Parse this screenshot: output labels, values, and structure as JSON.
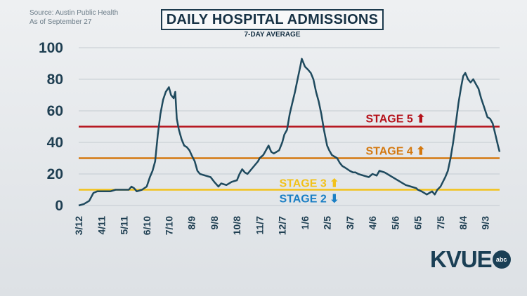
{
  "source": {
    "line1": "Source: Austin Public Health",
    "line2": "As of September 27"
  },
  "logo": {
    "text": "KVUE",
    "badge": "abc"
  },
  "chart_data": {
    "type": "line",
    "title": "DAILY HOSPITAL ADMISSIONS",
    "subtitle": "7-DAY AVERAGE",
    "xlabel": "",
    "ylabel": "",
    "ylim": [
      0,
      100
    ],
    "yticks": [
      0,
      20,
      40,
      60,
      80,
      100
    ],
    "grid": true,
    "xticks": [
      {
        "label": "3/12",
        "week": 0
      },
      {
        "label": "4/11",
        "week": 4.3
      },
      {
        "label": "5/11",
        "week": 8.6
      },
      {
        "label": "6/10",
        "week": 12.9
      },
      {
        "label": "7/10",
        "week": 17.1
      },
      {
        "label": "8/9",
        "week": 21.4
      },
      {
        "label": "9/8",
        "week": 25.7
      },
      {
        "label": "10/8",
        "week": 30.0
      },
      {
        "label": "11/7",
        "week": 34.3
      },
      {
        "label": "12/7",
        "week": 38.6
      },
      {
        "label": "1/6",
        "week": 42.9
      },
      {
        "label": "2/5",
        "week": 47.1
      },
      {
        "label": "3/7",
        "week": 51.4
      },
      {
        "label": "4/6",
        "week": 55.7
      },
      {
        "label": "5/6",
        "week": 60.0
      },
      {
        "label": "6/5",
        "week": 64.3
      },
      {
        "label": "7/5",
        "week": 68.6
      },
      {
        "label": "8/4",
        "week": 72.9
      },
      {
        "label": "9/3",
        "week": 77.1
      }
    ],
    "thresholds": [
      {
        "name": "STAGE 5",
        "value": 50,
        "color": "#b5121b",
        "arrow": "up",
        "arrow_glyph": "⬆"
      },
      {
        "name": "STAGE 4",
        "value": 30,
        "color": "#d4780f",
        "arrow": "up",
        "arrow_glyph": "⬆"
      },
      {
        "name": "STAGE 3",
        "value": 10,
        "color": "#f2c21a",
        "arrow": "up",
        "arrow_glyph": "⬆"
      },
      {
        "name": "STAGE 2",
        "value": 10,
        "color": "#1a7fc4",
        "arrow": "down",
        "arrow_glyph": "⬇"
      }
    ],
    "series": [
      {
        "color": "#1f4a5e",
        "points": [
          [
            0,
            0
          ],
          [
            1,
            1
          ],
          [
            2,
            3
          ],
          [
            2.8,
            8
          ],
          [
            3.5,
            9
          ],
          [
            4.3,
            9
          ],
          [
            5,
            9
          ],
          [
            6,
            9
          ],
          [
            7,
            10
          ],
          [
            8,
            10
          ],
          [
            8.6,
            10
          ],
          [
            9.5,
            10
          ],
          [
            10,
            12
          ],
          [
            10.5,
            11
          ],
          [
            11,
            9
          ],
          [
            12,
            10
          ],
          [
            12.9,
            12
          ],
          [
            13.5,
            18
          ],
          [
            14,
            22
          ],
          [
            14.5,
            28
          ],
          [
            15,
            45
          ],
          [
            15.5,
            58
          ],
          [
            16,
            67
          ],
          [
            16.5,
            72
          ],
          [
            17.1,
            75
          ],
          [
            17.5,
            70
          ],
          [
            18,
            68
          ],
          [
            18.3,
            72
          ],
          [
            18.6,
            55
          ],
          [
            19,
            48
          ],
          [
            19.5,
            42
          ],
          [
            20,
            38
          ],
          [
            20.5,
            37
          ],
          [
            21,
            35
          ],
          [
            21.4,
            32
          ],
          [
            22,
            28
          ],
          [
            22.5,
            22
          ],
          [
            23,
            20
          ],
          [
            24,
            19
          ],
          [
            25,
            18
          ],
          [
            25.7,
            15
          ],
          [
            26.5,
            12
          ],
          [
            27,
            14
          ],
          [
            28,
            13
          ],
          [
            29,
            15
          ],
          [
            30,
            16
          ],
          [
            30.5,
            20
          ],
          [
            31,
            23
          ],
          [
            31.5,
            21
          ],
          [
            32,
            20
          ],
          [
            33,
            24
          ],
          [
            34,
            28
          ],
          [
            34.3,
            30
          ],
          [
            35,
            32
          ],
          [
            35.5,
            35
          ],
          [
            36,
            38
          ],
          [
            36.5,
            34
          ],
          [
            37,
            33
          ],
          [
            38,
            35
          ],
          [
            38.6,
            40
          ],
          [
            39,
            45
          ],
          [
            39.5,
            48
          ],
          [
            40,
            58
          ],
          [
            40.5,
            65
          ],
          [
            41,
            72
          ],
          [
            41.5,
            80
          ],
          [
            42,
            88
          ],
          [
            42.3,
            93
          ],
          [
            42.9,
            88
          ],
          [
            43.5,
            86
          ],
          [
            44,
            84
          ],
          [
            44.5,
            80
          ],
          [
            45,
            72
          ],
          [
            45.5,
            66
          ],
          [
            46,
            58
          ],
          [
            46.5,
            48
          ],
          [
            47.1,
            38
          ],
          [
            47.5,
            35
          ],
          [
            48,
            32
          ],
          [
            48.5,
            31
          ],
          [
            49,
            30
          ],
          [
            49.5,
            27
          ],
          [
            50,
            25
          ],
          [
            50.5,
            24
          ],
          [
            51.4,
            22
          ],
          [
            52,
            21
          ],
          [
            52.5,
            21
          ],
          [
            53,
            20
          ],
          [
            54,
            19
          ],
          [
            55,
            18
          ],
          [
            55.7,
            20
          ],
          [
            56.5,
            19
          ],
          [
            57,
            22
          ],
          [
            58,
            21
          ],
          [
            58.5,
            20
          ],
          [
            59,
            19
          ],
          [
            60,
            17
          ],
          [
            61,
            15
          ],
          [
            62,
            13
          ],
          [
            63,
            12
          ],
          [
            64,
            11
          ],
          [
            64.3,
            10
          ],
          [
            65,
            9
          ],
          [
            65.5,
            8
          ],
          [
            66,
            7
          ],
          [
            66.5,
            8
          ],
          [
            67,
            9
          ],
          [
            67.5,
            7
          ],
          [
            68,
            10
          ],
          [
            68.6,
            12
          ],
          [
            69.5,
            18
          ],
          [
            70,
            22
          ],
          [
            70.5,
            30
          ],
          [
            71,
            40
          ],
          [
            71.5,
            52
          ],
          [
            72,
            65
          ],
          [
            72.5,
            75
          ],
          [
            72.9,
            82
          ],
          [
            73.3,
            84
          ],
          [
            73.8,
            80
          ],
          [
            74.3,
            78
          ],
          [
            74.8,
            80
          ],
          [
            75.3,
            77
          ],
          [
            75.8,
            74
          ],
          [
            76.3,
            68
          ],
          [
            76.8,
            63
          ],
          [
            77.1,
            60
          ],
          [
            77.5,
            56
          ],
          [
            78,
            55
          ],
          [
            78.5,
            52
          ],
          [
            79,
            45
          ],
          [
            79.5,
            38
          ],
          [
            79.8,
            34
          ]
        ]
      }
    ],
    "xlim": [
      0,
      79.8
    ]
  }
}
